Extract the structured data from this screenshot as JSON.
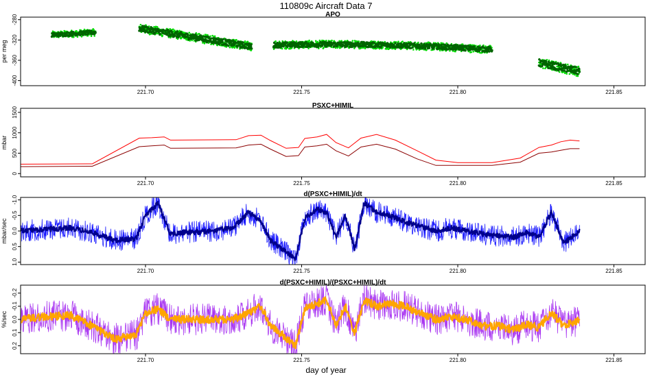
{
  "title": "110809c   Aircraft Data 7",
  "xlabel": "day of year",
  "chart_data": [
    {
      "type": "scatter",
      "title": "APO",
      "ylabel": "per meg",
      "xlim": [
        221.66,
        221.86
      ],
      "ylim": [
        -410,
        -275
      ],
      "y_reversed": false,
      "xticks": [
        "221.70",
        "221.75",
        "221.80",
        "221.85"
      ],
      "yticks": [
        "-280",
        "-320",
        "-360",
        "-400"
      ],
      "grid": false,
      "series": [
        {
          "color": "#00dd00",
          "segments": [
            {
              "x": [
                221.67,
                221.684
              ],
              "y": [
                -310,
                -305
              ],
              "noise": 7
            },
            {
              "x": [
                221.698,
                221.734
              ],
              "y": [
                -297,
                -333
              ],
              "noise": 9
            },
            {
              "x": [
                221.741,
                221.811
              ],
              "y": [
                -330,
                -339
              ],
              "noise": 8,
              "mid": -325
            },
            {
              "x": [
                221.826,
                221.839
              ],
              "y": [
                -365,
                -382
              ],
              "noise": 10
            }
          ]
        },
        {
          "color": "#006400",
          "segments": [
            {
              "x": [
                221.67,
                221.684
              ],
              "y": [
                -310,
                -305
              ],
              "noise": 4
            },
            {
              "x": [
                221.698,
                221.734
              ],
              "y": [
                -297,
                -333
              ],
              "noise": 6
            },
            {
              "x": [
                221.741,
                221.811
              ],
              "y": [
                -330,
                -339
              ],
              "noise": 5,
              "mid": -325
            },
            {
              "x": [
                221.826,
                221.839
              ],
              "y": [
                -365,
                -382
              ],
              "noise": 7
            }
          ]
        }
      ]
    },
    {
      "type": "line",
      "title": "PSXC+HIMIL",
      "ylabel": "mbar",
      "xlim": [
        221.66,
        221.86
      ],
      "ylim": [
        -80,
        1600
      ],
      "y_reversed": false,
      "xticks": [
        "221.70",
        "221.75",
        "221.80",
        "221.85"
      ],
      "yticks": [
        "0",
        "500",
        "1000",
        "1500"
      ],
      "grid": false,
      "series": [
        {
          "color": "#ff0000",
          "x": [
            221.66,
            221.683,
            221.698,
            221.702,
            221.706,
            221.708,
            221.729,
            221.733,
            221.737,
            221.74,
            221.745,
            221.749,
            221.751,
            221.755,
            221.758,
            221.761,
            221.765,
            221.769,
            221.774,
            221.78,
            221.787,
            221.793,
            221.8,
            221.811,
            221.82,
            221.826,
            221.83,
            221.833,
            221.836,
            221.839
          ],
          "y": [
            230,
            240,
            870,
            880,
            900,
            820,
            830,
            930,
            940,
            810,
            620,
            640,
            860,
            900,
            960,
            760,
            630,
            870,
            960,
            820,
            560,
            330,
            270,
            270,
            380,
            640,
            700,
            780,
            820,
            800
          ]
        },
        {
          "color": "#8b0000",
          "x": [
            221.66,
            221.683,
            221.698,
            221.702,
            221.706,
            221.708,
            221.729,
            221.733,
            221.737,
            221.74,
            221.745,
            221.749,
            221.751,
            221.755,
            221.758,
            221.761,
            221.765,
            221.769,
            221.774,
            221.78,
            221.787,
            221.793,
            221.8,
            221.811,
            221.82,
            221.826,
            221.83,
            221.833,
            221.836,
            221.839
          ],
          "y": [
            170,
            180,
            660,
            680,
            700,
            620,
            630,
            700,
            720,
            600,
            420,
            440,
            650,
            680,
            720,
            560,
            430,
            650,
            720,
            600,
            360,
            200,
            200,
            200,
            280,
            500,
            530,
            570,
            610,
            610
          ]
        }
      ]
    },
    {
      "type": "line",
      "title": "d(PSXC+HIMIL)/dt",
      "ylabel": "mbar/sec",
      "xlim": [
        221.66,
        221.86
      ],
      "ylim": [
        1.08,
        -1.08
      ],
      "y_reversed": true,
      "xticks": [
        "221.70",
        "221.75",
        "221.80",
        "221.85"
      ],
      "yticks": [
        "1.0",
        "0.5",
        "0.0",
        "-0.5",
        "-1.0"
      ],
      "grid": false,
      "series": [
        {
          "color": "#0000ff",
          "x": [
            221.66,
            221.668,
            221.676,
            221.683,
            221.69,
            221.697,
            221.7,
            221.704,
            221.708,
            221.712,
            221.72,
            221.728,
            221.733,
            221.737,
            221.74,
            221.744,
            221.748,
            221.751,
            221.755,
            221.758,
            221.761,
            221.764,
            221.767,
            221.77,
            221.774,
            221.778,
            221.783,
            221.788,
            221.793,
            221.798,
            221.803,
            221.808,
            221.813,
            221.818,
            221.822,
            221.826,
            221.83,
            221.834,
            221.839
          ],
          "y": [
            0.0,
            -0.05,
            -0.1,
            0.05,
            0.3,
            0.25,
            -0.5,
            -0.9,
            0.1,
            0.05,
            0.02,
            -0.1,
            -0.6,
            -0.3,
            0.3,
            0.6,
            0.9,
            -0.4,
            -0.7,
            -0.6,
            0.2,
            -0.5,
            0.6,
            -0.9,
            -0.6,
            -0.5,
            -0.3,
            -0.15,
            0.0,
            -0.1,
            0.0,
            0.1,
            0.15,
            0.2,
            0.05,
            0.2,
            -0.6,
            0.4,
            0.0
          ],
          "noise": 0.35
        },
        {
          "color": "#00008b",
          "x": [
            221.66,
            221.668,
            221.676,
            221.683,
            221.69,
            221.697,
            221.7,
            221.704,
            221.708,
            221.712,
            221.72,
            221.728,
            221.733,
            221.737,
            221.74,
            221.744,
            221.748,
            221.751,
            221.755,
            221.758,
            221.761,
            221.764,
            221.767,
            221.77,
            221.774,
            221.778,
            221.783,
            221.788,
            221.793,
            221.798,
            221.803,
            221.808,
            221.813,
            221.818,
            221.822,
            221.826,
            221.83,
            221.834,
            221.839
          ],
          "y": [
            0.0,
            -0.05,
            -0.1,
            0.05,
            0.3,
            0.25,
            -0.5,
            -0.9,
            0.1,
            0.05,
            0.02,
            -0.1,
            -0.6,
            -0.3,
            0.3,
            0.6,
            0.9,
            -0.4,
            -0.7,
            -0.6,
            0.2,
            -0.5,
            0.6,
            -0.9,
            -0.6,
            -0.5,
            -0.3,
            -0.15,
            0.0,
            -0.1,
            0.0,
            0.1,
            0.15,
            0.2,
            0.05,
            0.2,
            -0.6,
            0.4,
            0.0
          ],
          "noise": 0.08
        }
      ]
    },
    {
      "type": "line",
      "title": "d(PSXC+HIMIL)/(PSXC+HIMIL)/dt",
      "ylabel": "%/sec",
      "xlim": [
        221.66,
        221.86
      ],
      "ylim": [
        0.26,
        -0.26
      ],
      "y_reversed": true,
      "xticks": [
        "221.70",
        "221.75",
        "221.80",
        "221.85"
      ],
      "yticks": [
        "0.2",
        "0.1",
        "0.0",
        "-0.1",
        "-0.2"
      ],
      "grid": false,
      "series": [
        {
          "color": "#a020f0",
          "x": [
            221.66,
            221.668,
            221.676,
            221.683,
            221.69,
            221.697,
            221.7,
            221.704,
            221.708,
            221.712,
            221.72,
            221.728,
            221.733,
            221.737,
            221.74,
            221.744,
            221.748,
            221.751,
            221.755,
            221.758,
            221.761,
            221.764,
            221.767,
            221.77,
            221.774,
            221.778,
            221.783,
            221.788,
            221.793,
            221.798,
            221.803,
            221.808,
            221.813,
            221.818,
            221.822,
            221.826,
            221.83,
            221.834,
            221.839
          ],
          "y": [
            0.0,
            -0.02,
            -0.03,
            0.05,
            0.15,
            0.12,
            -0.05,
            -0.08,
            0.0,
            0.0,
            0.0,
            0.0,
            -0.05,
            -0.1,
            0.05,
            0.12,
            0.2,
            -0.08,
            -0.12,
            -0.15,
            0.05,
            -0.1,
            0.1,
            -0.15,
            -0.1,
            -0.12,
            -0.1,
            -0.05,
            0.0,
            -0.02,
            0.0,
            0.05,
            0.05,
            0.08,
            0.04,
            0.06,
            -0.05,
            0.05,
            0.0
          ],
          "noise": 0.12
        },
        {
          "color": "#ffa500",
          "x": [
            221.66,
            221.668,
            221.676,
            221.683,
            221.69,
            221.697,
            221.7,
            221.704,
            221.708,
            221.712,
            221.72,
            221.728,
            221.733,
            221.737,
            221.74,
            221.744,
            221.748,
            221.751,
            221.755,
            221.758,
            221.761,
            221.764,
            221.767,
            221.77,
            221.774,
            221.778,
            221.783,
            221.788,
            221.793,
            221.798,
            221.803,
            221.808,
            221.813,
            221.818,
            221.822,
            221.826,
            221.83,
            221.834,
            221.839
          ],
          "y": [
            0.0,
            -0.02,
            -0.03,
            0.05,
            0.15,
            0.12,
            -0.05,
            -0.08,
            0.0,
            0.0,
            0.0,
            0.0,
            -0.05,
            -0.1,
            0.05,
            0.12,
            0.2,
            -0.08,
            -0.12,
            -0.15,
            0.05,
            -0.1,
            0.1,
            -0.15,
            -0.1,
            -0.12,
            -0.1,
            -0.05,
            0.0,
            -0.02,
            0.0,
            0.05,
            0.05,
            0.08,
            0.04,
            0.06,
            -0.05,
            0.05,
            0.0
          ],
          "noise": 0.03
        }
      ]
    }
  ]
}
